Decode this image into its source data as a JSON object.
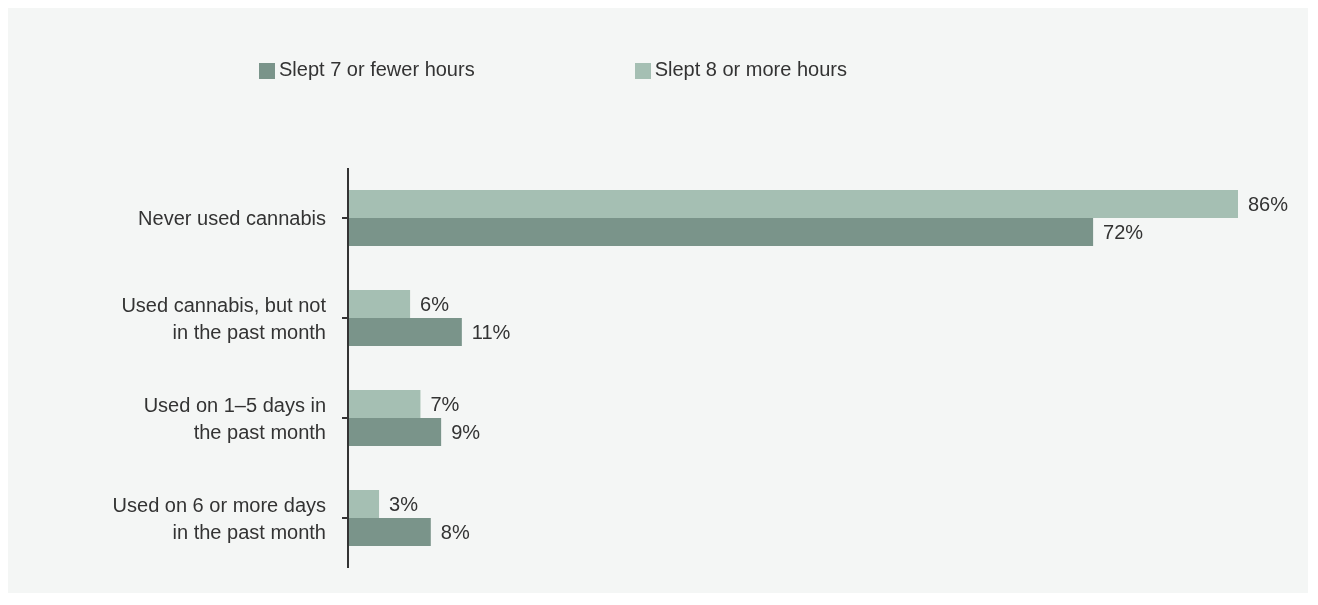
{
  "chart_data": {
    "type": "bar",
    "orientation": "horizontal",
    "categories": [
      "Never used cannabis",
      "Used cannabis, but not in the past month",
      "Used on 1–5 days in the past month",
      "Used on 6 or more days in the past month"
    ],
    "series": [
      {
        "name": "Slept 8 or more hours",
        "color": "#a5bfb3",
        "values": [
          86,
          6,
          7,
          3
        ],
        "value_labels": [
          "86%",
          "6%",
          "7%",
          "3%"
        ]
      },
      {
        "name": "Slept 7 or fewer hours",
        "color": "#7a948a",
        "values": [
          72,
          11,
          9,
          8
        ],
        "value_labels": [
          "72%",
          "11%",
          "9%",
          "8%"
        ]
      }
    ],
    "legend": "top",
    "grid": false
  }
}
